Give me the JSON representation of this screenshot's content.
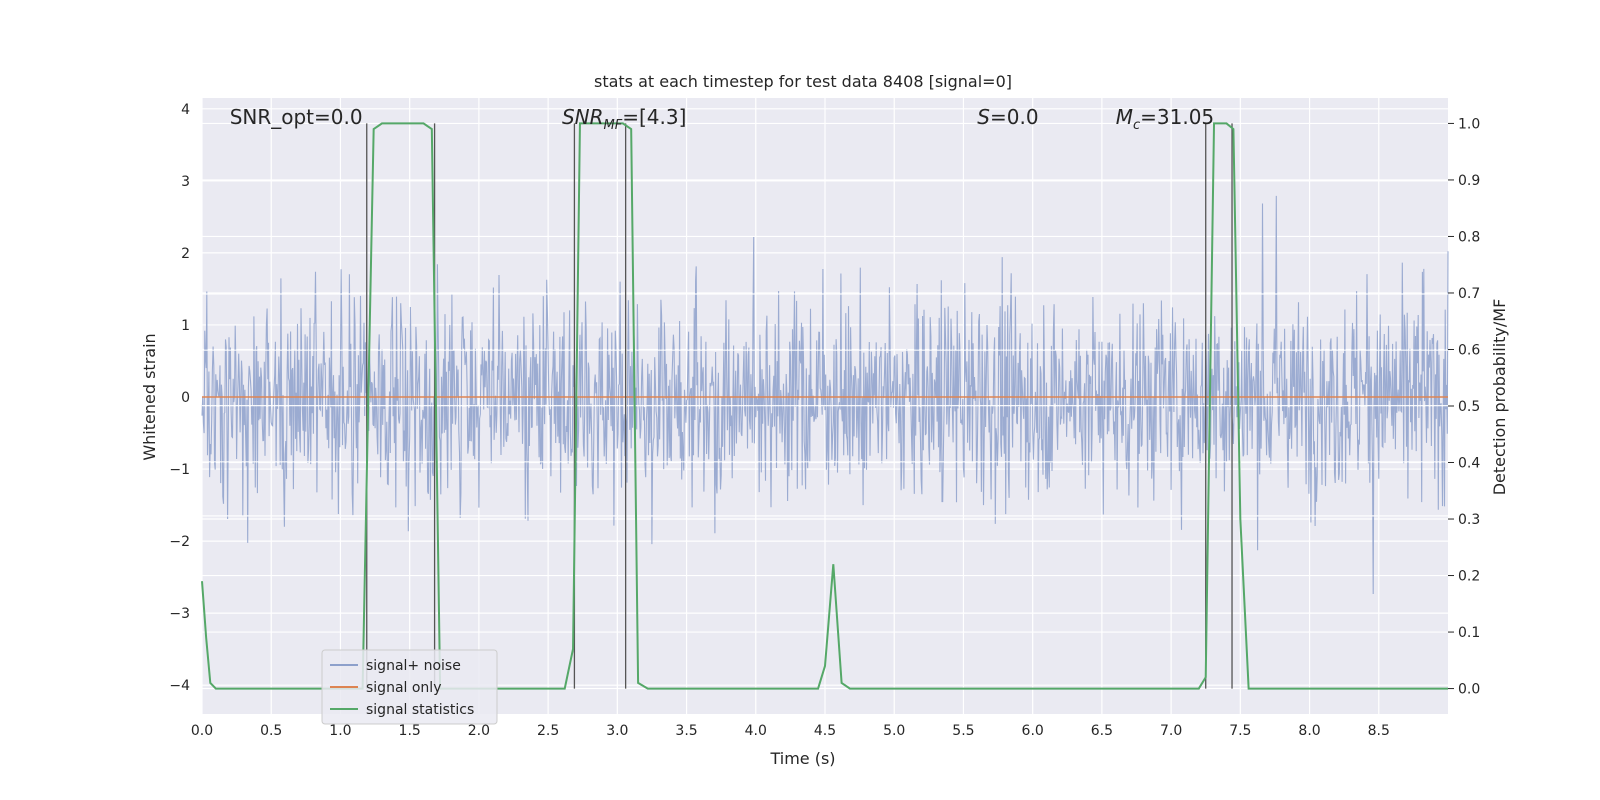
{
  "chart_data": {
    "type": "line",
    "title": "stats at each timestep for test data 8408 [signal=0]",
    "xlabel": "Time (s)",
    "ylabel": "Whitened strain",
    "y2label": "Detection probability/MF",
    "xlim": [
      0,
      9.0
    ],
    "ylim": [
      -4.4,
      4.15
    ],
    "y2lim": [
      -0.045,
      1.045
    ],
    "xticks": [
      0.0,
      0.5,
      1.0,
      1.5,
      2.0,
      2.5,
      3.0,
      3.5,
      4.0,
      4.5,
      5.0,
      5.5,
      6.0,
      6.5,
      7.0,
      7.5,
      8.0,
      8.5
    ],
    "xtick_labels": [
      "0.0",
      "0.5",
      "1.0",
      "1.5",
      "2.0",
      "2.5",
      "3.0",
      "3.5",
      "4.0",
      "4.5",
      "5.0",
      "5.5",
      "6.0",
      "6.5",
      "7.0",
      "7.5",
      "8.0",
      "8.5"
    ],
    "yticks": [
      -4,
      -3,
      -2,
      -1,
      0,
      1,
      2,
      3,
      4
    ],
    "ytick_labels": [
      "−4",
      "−3",
      "−2",
      "−1",
      "0",
      "1",
      "2",
      "3",
      "4"
    ],
    "y2ticks": [
      0.0,
      0.1,
      0.2,
      0.3,
      0.4,
      0.5,
      0.6,
      0.7,
      0.8,
      0.9,
      1.0
    ],
    "y2tick_labels": [
      "0.0",
      "0.1",
      "0.2",
      "0.3",
      "0.4",
      "0.5",
      "0.6",
      "0.7",
      "0.8",
      "0.9",
      "1.0"
    ],
    "grid": true,
    "legend_position": "lower-left",
    "annotations": [
      {
        "text": "SNR_opt=0.0",
        "x": 0.2
      },
      {
        "text": "SNR_MF=[4.3]",
        "x": 2.6,
        "main": "SNR",
        "sub": "MF",
        "rest": "=[4.3]"
      },
      {
        "text": "S=0.0",
        "x": 5.6,
        "main": "S",
        "rest": "=0.0"
      },
      {
        "text": "Mc=31.05",
        "x": 6.6,
        "main": "M",
        "sub": "c",
        "rest": "=31.05"
      }
    ],
    "vertical_lines": [
      1.19,
      1.68,
      2.69,
      3.06,
      7.25,
      7.44
    ],
    "noise_sample_step": 0.005,
    "noise_envelope_typical": 1.5,
    "noise_peak_max": 3.8,
    "noise_peak_min": -3.7,
    "series": [
      {
        "name": "signal+ noise",
        "color": "#8da0cb",
        "axis": "left",
        "kind": "noise"
      },
      {
        "name": "signal only",
        "color": "#dd8452",
        "axis": "left",
        "x": [
          0,
          9.0
        ],
        "y": [
          0,
          0
        ]
      },
      {
        "name": "signal statistics",
        "color": "#55a868",
        "axis": "right",
        "x": [
          0.0,
          0.03,
          0.06,
          0.1,
          0.12,
          1.16,
          1.2,
          1.24,
          1.3,
          1.6,
          1.66,
          1.72,
          1.75,
          2.62,
          2.68,
          2.73,
          2.8,
          3.04,
          3.1,
          3.15,
          3.22,
          4.45,
          4.5,
          4.56,
          4.62,
          4.68,
          7.2,
          7.25,
          7.31,
          7.4,
          7.45,
          7.5,
          7.56,
          9.0
        ],
        "y": [
          0.19,
          0.09,
          0.01,
          0.0,
          0.0,
          0.0,
          0.5,
          0.99,
          1.0,
          1.0,
          0.99,
          0.0,
          0.0,
          0.0,
          0.07,
          1.0,
          1.0,
          1.0,
          0.99,
          0.01,
          0.0,
          0.0,
          0.04,
          0.22,
          0.01,
          0.0,
          0.0,
          0.02,
          1.0,
          1.0,
          0.99,
          0.3,
          0.0,
          0.0
        ]
      }
    ]
  }
}
